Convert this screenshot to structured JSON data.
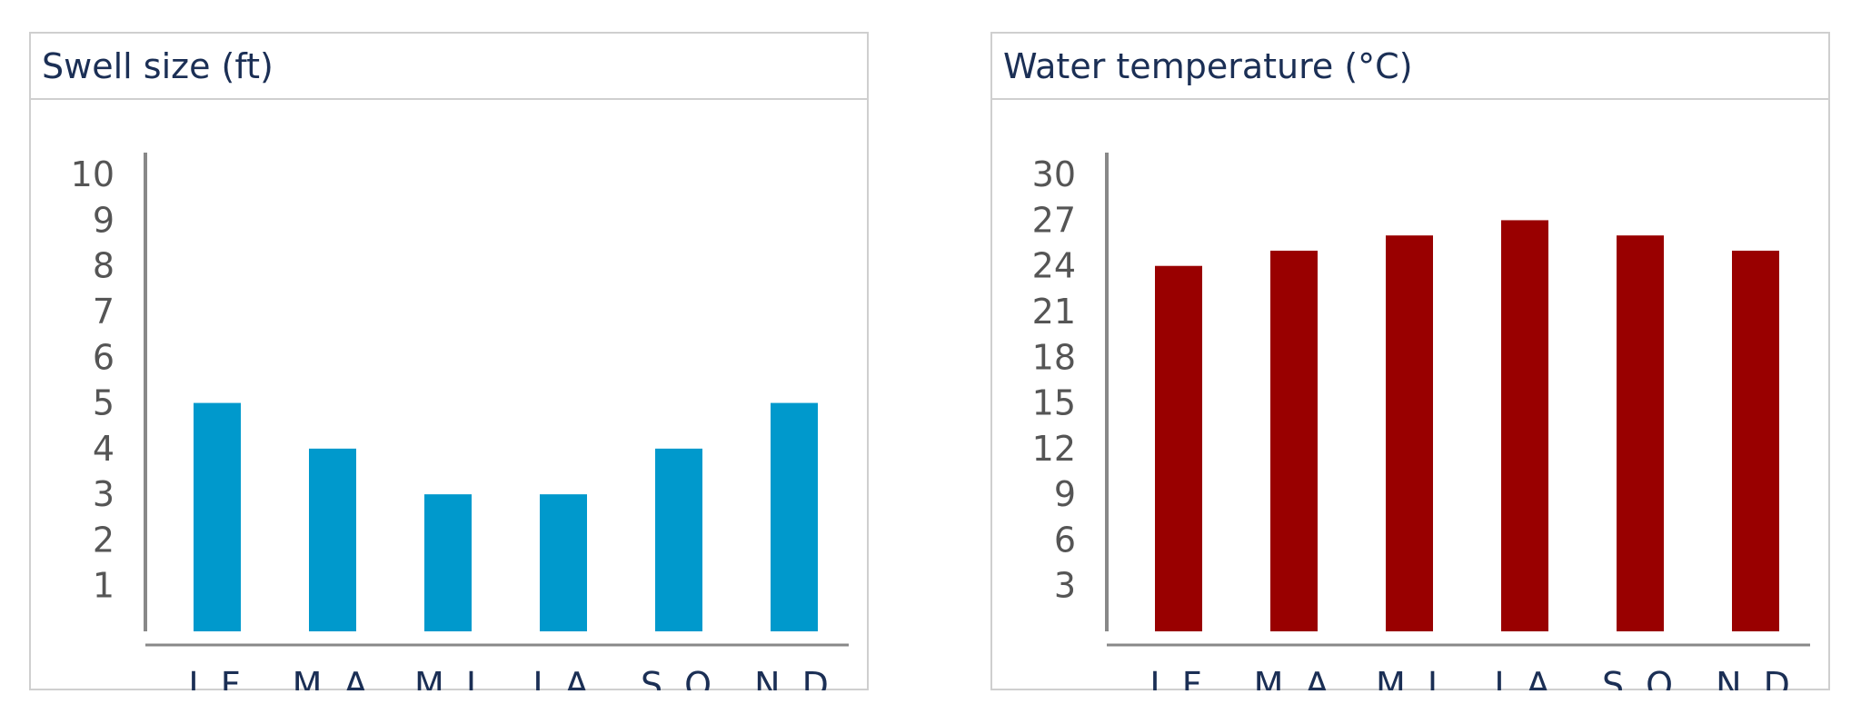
{
  "chart_data": [
    {
      "type": "bar",
      "title": "Swell size (ft)",
      "categories": [
        "J F",
        "M A",
        "M J",
        "J A",
        "S O",
        "N D"
      ],
      "values": [
        5,
        4,
        3,
        3,
        4,
        5
      ],
      "yticks": [
        1,
        2,
        3,
        4,
        5,
        6,
        7,
        8,
        9,
        10
      ],
      "ylim": [
        0,
        10.5
      ],
      "color": "#0099cc",
      "grid": false,
      "legend": "none"
    },
    {
      "type": "bar",
      "title": "Water temperature (°C)",
      "categories": [
        "J F",
        "M A",
        "M J",
        "J A",
        "S O",
        "N D"
      ],
      "values": [
        24,
        25,
        26,
        27,
        26,
        25
      ],
      "yticks": [
        3,
        6,
        9,
        12,
        15,
        18,
        21,
        24,
        27,
        30
      ],
      "ylim": [
        0,
        31.5
      ],
      "color": "#990000",
      "grid": false,
      "legend": "none"
    }
  ]
}
